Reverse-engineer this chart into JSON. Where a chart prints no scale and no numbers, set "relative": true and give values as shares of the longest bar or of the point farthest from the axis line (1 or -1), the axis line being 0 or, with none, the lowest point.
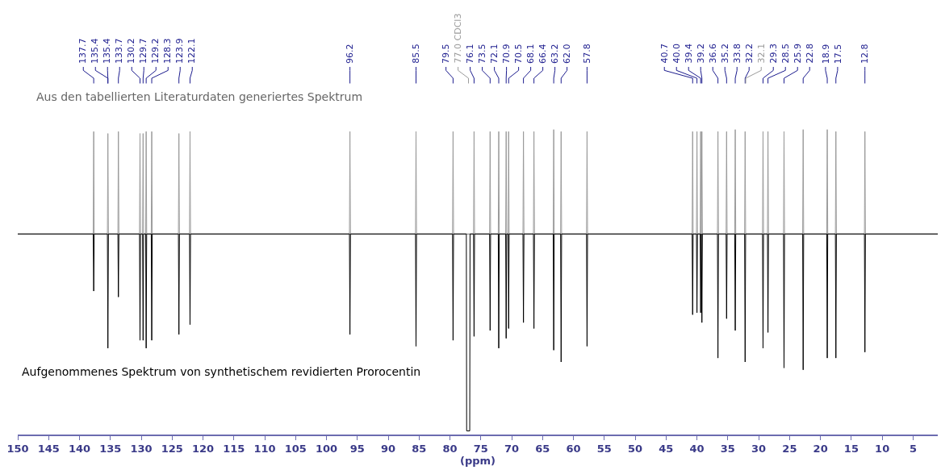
{
  "chart_data": {
    "type": "line",
    "relative": true,
    "xlabel": "(ppm)",
    "xlim": [
      150,
      1
    ],
    "xticks": [
      150,
      145,
      140,
      135,
      130,
      125,
      120,
      115,
      110,
      105,
      100,
      95,
      90,
      85,
      80,
      75,
      70,
      65,
      60,
      55,
      50,
      45,
      40,
      35,
      30,
      25,
      20,
      15,
      10,
      5
    ],
    "series": [
      {
        "color": "#9a9a9a",
        "x": [
          150,
          137.78,
          137.7,
          137.62,
          135.48,
          135.4,
          135.32,
          133.78,
          133.7,
          133.62,
          130.28,
          130.2,
          130.12,
          129.78,
          129.7,
          129.62,
          129.28,
          129.2,
          129.12,
          128.38,
          128.3,
          128.22,
          123.98,
          123.9,
          123.82,
          122.18,
          122.1,
          122.02,
          96.28,
          96.2,
          96.12,
          85.58,
          85.5,
          85.42,
          79.58,
          79.5,
          79.42,
          76.18,
          76.1,
          76.02,
          73.58,
          73.5,
          73.42,
          72.18,
          72.1,
          72.02,
          70.98,
          70.9,
          70.82,
          70.58,
          70.5,
          70.42,
          68.18,
          68.1,
          68.02,
          66.48,
          66.4,
          66.32,
          63.28,
          63.2,
          63.12,
          62.08,
          62.0,
          61.92,
          57.88,
          57.8,
          57.72,
          40.78,
          40.7,
          40.62,
          40.08,
          40.0,
          39.92,
          39.48,
          39.4,
          39.32,
          39.28,
          39.2,
          39.12,
          36.68,
          36.6,
          36.52,
          35.28,
          35.2,
          35.12,
          33.88,
          33.8,
          33.72,
          32.28,
          32.2,
          32.12,
          29.38,
          29.3,
          29.22,
          28.58,
          28.5,
          28.42,
          25.98,
          25.9,
          25.82,
          22.88,
          22.8,
          22.72,
          18.98,
          18.9,
          18.82,
          17.58,
          17.5,
          17.42,
          12.88,
          12.8,
          12.72,
          1
        ],
        "values": [
          0,
          0,
          0.52,
          0,
          0,
          0.51,
          0,
          0,
          0.52,
          0,
          0,
          0.51,
          0,
          0,
          0.51,
          0,
          0,
          0.52,
          0,
          0,
          0.52,
          0,
          0,
          0.51,
          0,
          0,
          0.52,
          0,
          0,
          0.52,
          0,
          0,
          0.52,
          0,
          0,
          0.52,
          0,
          0,
          0.52,
          0,
          0,
          0.52,
          0,
          0,
          0.52,
          0,
          0,
          0.52,
          0,
          0,
          0.52,
          0,
          0,
          0.52,
          0,
          0,
          0.52,
          0,
          0,
          0.53,
          0,
          0,
          0.52,
          0,
          0,
          0.52,
          0,
          0,
          0.52,
          0,
          0,
          0.52,
          0,
          0,
          0.52,
          0,
          0,
          0.52,
          0,
          0,
          0.52,
          0,
          0,
          0.52,
          0,
          0,
          0.53,
          0,
          0,
          0.52,
          0,
          0,
          0.52,
          0,
          0,
          0.52,
          0,
          0,
          0.52,
          0,
          0,
          0.53,
          0,
          0,
          0.53,
          0,
          0,
          0.52,
          0,
          0,
          0.52,
          0,
          0
        ]
      },
      {
        "color": "#000000",
        "x": [
          150,
          137.78,
          137.7,
          137.62,
          135.48,
          135.4,
          135.32,
          133.78,
          133.7,
          133.62,
          130.28,
          130.2,
          130.12,
          129.78,
          129.7,
          129.62,
          129.28,
          129.2,
          129.12,
          128.38,
          128.3,
          128.22,
          123.98,
          123.9,
          123.82,
          122.18,
          122.1,
          122.02,
          96.28,
          96.2,
          96.12,
          85.58,
          85.5,
          85.42,
          79.58,
          79.5,
          79.42,
          77.35,
          77.3,
          76.8,
          76.75,
          76.18,
          76.1,
          76.02,
          73.58,
          73.5,
          73.42,
          72.18,
          72.1,
          72.02,
          70.98,
          70.9,
          70.82,
          70.58,
          70.5,
          70.42,
          68.18,
          68.1,
          68.02,
          66.48,
          66.4,
          66.32,
          63.28,
          63.2,
          63.12,
          62.08,
          62.0,
          61.92,
          57.88,
          57.8,
          57.72,
          40.78,
          40.7,
          40.62,
          40.08,
          40.0,
          39.92,
          39.48,
          39.4,
          39.32,
          39.28,
          39.2,
          39.12,
          36.68,
          36.6,
          36.52,
          35.28,
          35.2,
          35.12,
          33.88,
          33.8,
          33.72,
          32.28,
          32.2,
          32.12,
          29.38,
          29.3,
          29.22,
          28.58,
          28.5,
          28.42,
          25.98,
          25.9,
          25.82,
          22.88,
          22.8,
          22.72,
          18.98,
          18.9,
          18.82,
          17.58,
          17.5,
          17.42,
          12.88,
          12.8,
          12.72,
          1
        ],
        "values": [
          0,
          0,
          -0.29,
          0,
          0,
          -0.58,
          0,
          0,
          -0.32,
          0,
          0,
          -0.54,
          0,
          0,
          -0.54,
          0,
          0,
          -0.58,
          0,
          0,
          -0.54,
          0,
          0,
          -0.51,
          0,
          0,
          -0.46,
          0,
          0,
          -0.51,
          0,
          0,
          -0.57,
          0,
          0,
          -0.54,
          0,
          0,
          -1,
          -1,
          0,
          0,
          -0.52,
          0,
          0,
          -0.49,
          0,
          0,
          -0.58,
          0,
          0,
          -0.53,
          0,
          0,
          -0.48,
          0,
          0,
          -0.45,
          0,
          0,
          -0.48,
          0,
          0,
          -0.59,
          0,
          0,
          -0.65,
          0,
          0,
          -0.57,
          0,
          0,
          -0.41,
          0,
          0,
          -0.4,
          0,
          0,
          -0.4,
          0,
          0,
          -0.45,
          0,
          0,
          -0.63,
          0,
          0,
          -0.43,
          0,
          0,
          -0.49,
          0,
          0,
          -0.65,
          0,
          0,
          -0.58,
          0,
          0,
          -0.5,
          0,
          0,
          -0.68,
          0,
          0,
          -0.69,
          0,
          0,
          -0.63,
          0,
          0,
          -0.63,
          0,
          0,
          -0.6,
          0,
          0
        ]
      }
    ],
    "annotations": [
      "Aus den tabellierten Literaturdaten generiertes Spektrum",
      "Aufgenommenes Spektrum von synthetischem revidierten Prorocentin",
      {
        "text": "137.7",
        "x": 137.7
      },
      {
        "text": "135.4",
        "x": 135.4
      },
      {
        "text": "135.4",
        "x": 135.4
      },
      {
        "text": "133.7",
        "x": 133.7
      },
      {
        "text": "130.2",
        "x": 130.2
      },
      {
        "text": "129.7",
        "x": 129.7
      },
      {
        "text": "129.2",
        "x": 129.2
      },
      {
        "text": "128.3",
        "x": 128.3
      },
      {
        "text": "123.9",
        "x": 123.9
      },
      {
        "text": "122.1",
        "x": 122.1
      },
      {
        "text": "96.2",
        "x": 96.2
      },
      {
        "text": "85.5",
        "x": 85.5
      },
      {
        "text": "79.5",
        "x": 79.5
      },
      {
        "text": "77.0 CDCl3",
        "x": 77.0
      },
      {
        "text": "76.1",
        "x": 76.1
      },
      {
        "text": "73.5",
        "x": 73.5
      },
      {
        "text": "72.1",
        "x": 72.1
      },
      {
        "text": "70.9",
        "x": 70.9
      },
      {
        "text": "70.5",
        "x": 70.5
      },
      {
        "text": "68.1",
        "x": 68.1
      },
      {
        "text": "66.4",
        "x": 66.4
      },
      {
        "text": "63.2",
        "x": 63.2
      },
      {
        "text": "62.0",
        "x": 62.0
      },
      {
        "text": "57.8",
        "x": 57.8
      },
      {
        "text": "40.7",
        "x": 40.7
      },
      {
        "text": "40.0",
        "x": 40.0
      },
      {
        "text": "39.4",
        "x": 39.4
      },
      {
        "text": "39.2",
        "x": 39.2
      },
      {
        "text": "36.6",
        "x": 36.6
      },
      {
        "text": "35.2",
        "x": 35.2
      },
      {
        "text": "33.8",
        "x": 33.8
      },
      {
        "text": "32.2",
        "x": 32.2
      },
      {
        "text": "32.1",
        "x": 32.1
      },
      {
        "text": "29.3",
        "x": 29.3
      },
      {
        "text": "28.5",
        "x": 28.5
      },
      {
        "text": "25.9",
        "x": 25.9
      },
      {
        "text": "22.8",
        "x": 22.8
      },
      {
        "text": "18.9",
        "x": 18.9
      },
      {
        "text": "17.5",
        "x": 17.5
      },
      {
        "text": "12.8",
        "x": 12.8
      }
    ]
  }
}
